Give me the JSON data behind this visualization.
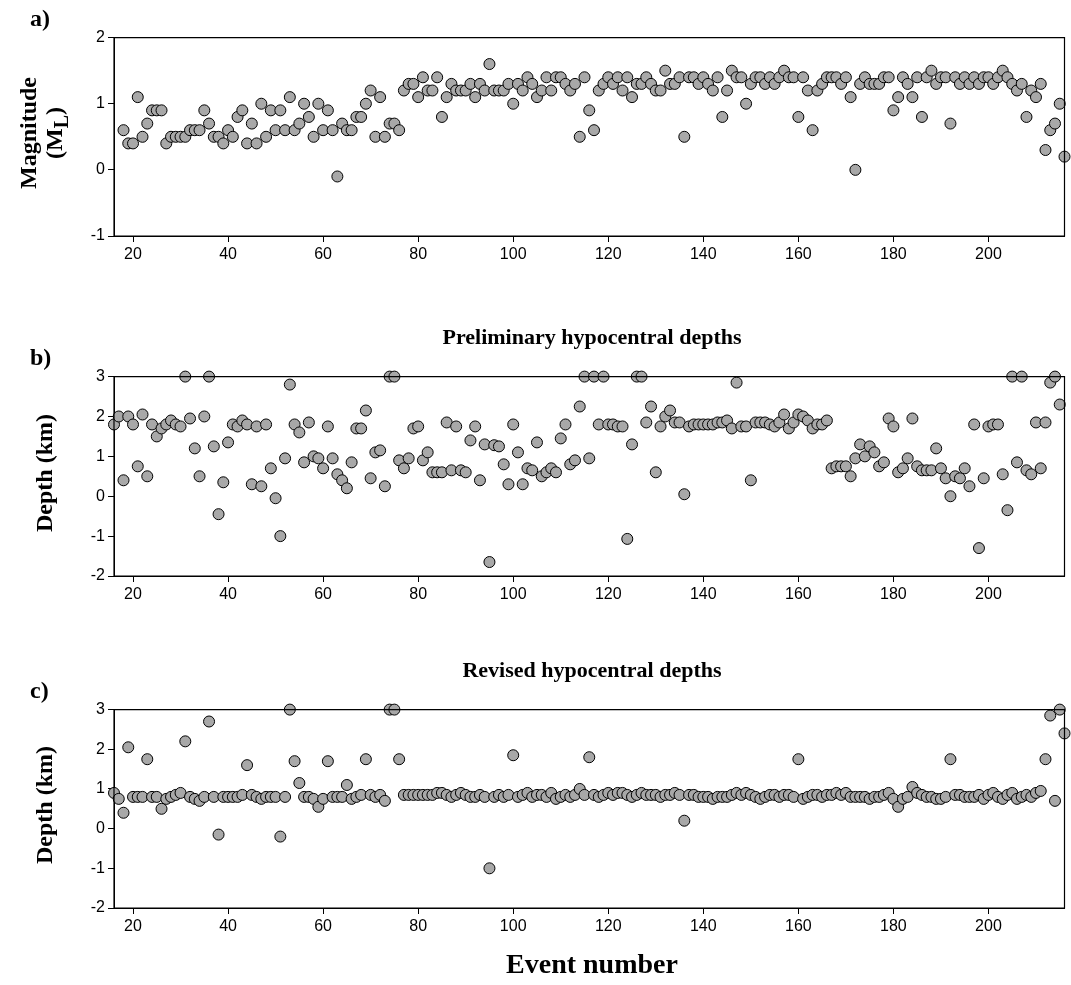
{
  "chart_data": [
    {
      "type": "scatter",
      "ylabel": "Magnitude (M$_{L}$)",
      "annotations": [
        "a)"
      ],
      "marker": "circle",
      "color": "#a8a8a8",
      "xlim": [
        16,
        216
      ],
      "xticks": [
        20,
        40,
        60,
        80,
        100,
        120,
        140,
        160,
        180,
        200
      ],
      "ylim": [
        -1,
        2
      ],
      "yticks": [
        -1,
        0,
        1,
        2
      ],
      "x": [
        18,
        19,
        20,
        21,
        22,
        23,
        24,
        25,
        26,
        27,
        28,
        29,
        30,
        31,
        32,
        33,
        34,
        35,
        36,
        37,
        38,
        39,
        40,
        41,
        42,
        43,
        44,
        45,
        46,
        47,
        48,
        49,
        50,
        51,
        52,
        53,
        54,
        55,
        56,
        57,
        58,
        59,
        60,
        61,
        62,
        63,
        64,
        65,
        66,
        67,
        68,
        69,
        70,
        71,
        72,
        73,
        74,
        75,
        76,
        77,
        78,
        79,
        80,
        81,
        82,
        83,
        84,
        85,
        86,
        87,
        88,
        89,
        90,
        91,
        92,
        93,
        94,
        95,
        96,
        97,
        98,
        99,
        100,
        101,
        102,
        103,
        104,
        105,
        106,
        107,
        108,
        109,
        110,
        111,
        112,
        113,
        114,
        115,
        116,
        117,
        118,
        119,
        120,
        121,
        122,
        123,
        124,
        125,
        126,
        127,
        128,
        129,
        130,
        131,
        132,
        133,
        134,
        135,
        136,
        137,
        138,
        139,
        140,
        141,
        142,
        143,
        144,
        145,
        146,
        147,
        148,
        149,
        150,
        151,
        152,
        153,
        154,
        155,
        156,
        157,
        158,
        159,
        160,
        161,
        162,
        163,
        164,
        165,
        166,
        167,
        168,
        169,
        170,
        171,
        172,
        173,
        174,
        175,
        176,
        177,
        178,
        179,
        180,
        181,
        182,
        183,
        184,
        185,
        186,
        187,
        188,
        189,
        190,
        191,
        192,
        193,
        194,
        195,
        196,
        197,
        198,
        199,
        200,
        201,
        202,
        203,
        204,
        205,
        206,
        207,
        208,
        209,
        210,
        211,
        212,
        213,
        214,
        215,
        216
      ],
      "values": [
        0.6,
        0.4,
        0.4,
        1.1,
        0.5,
        0.7,
        0.9,
        0.9,
        0.9,
        0.4,
        0.5,
        0.5,
        0.5,
        0.5,
        0.6,
        0.6,
        0.6,
        0.9,
        0.7,
        0.5,
        0.5,
        0.4,
        0.6,
        0.5,
        0.8,
        0.9,
        0.4,
        0.7,
        0.4,
        1.0,
        0.5,
        0.9,
        0.6,
        0.9,
        0.6,
        1.1,
        0.6,
        0.7,
        1.0,
        0.8,
        0.5,
        1.0,
        0.6,
        0.9,
        0.6,
        -0.1,
        0.7,
        0.6,
        0.6,
        0.8,
        0.8,
        1.0,
        1.2,
        0.5,
        1.1,
        0.5,
        0.7,
        0.7,
        0.6,
        1.2,
        1.3,
        1.3,
        1.1,
        1.4,
        1.2,
        1.2,
        1.4,
        0.8,
        1.1,
        1.3,
        1.2,
        1.2,
        1.2,
        1.3,
        1.1,
        1.3,
        1.2,
        1.6,
        1.2,
        1.2,
        1.2,
        1.3,
        1.0,
        1.3,
        1.2,
        1.4,
        1.3,
        1.1,
        1.2,
        1.4,
        1.2,
        1.4,
        1.4,
        1.3,
        1.2,
        1.3,
        0.5,
        1.4,
        0.9,
        0.6,
        1.2,
        1.3,
        1.4,
        1.3,
        1.4,
        1.2,
        1.4,
        1.1,
        1.3,
        1.3,
        1.4,
        1.3,
        1.2,
        1.2,
        1.5,
        1.3,
        1.3,
        1.4,
        0.5,
        1.4,
        1.4,
        1.3,
        1.4,
        1.3,
        1.2,
        1.4,
        0.8,
        1.2,
        1.5,
        1.4,
        1.4,
        1.0,
        1.3,
        1.4,
        1.4,
        1.3,
        1.4,
        1.3,
        1.4,
        1.5,
        1.4,
        1.4,
        0.8,
        1.4,
        1.2,
        0.6,
        1.2,
        1.3,
        1.4,
        1.4,
        1.4,
        1.3,
        1.4,
        1.1,
        0.0,
        1.3,
        1.4,
        1.3,
        1.3,
        1.3,
        1.4,
        1.4,
        0.9,
        1.1,
        1.4,
        1.3,
        1.1,
        1.4,
        0.8,
        1.4,
        1.5,
        1.3,
        1.4,
        1.4,
        0.7,
        1.4,
        1.3,
        1.4,
        1.3,
        1.4,
        1.3,
        1.4,
        1.4,
        1.3,
        1.4,
        1.5,
        1.4,
        1.3,
        1.2,
        1.3,
        0.8,
        1.2,
        1.1,
        1.3,
        0.3,
        0.6,
        0.7,
        1.0,
        0.2
      ]
    },
    {
      "type": "scatter",
      "title": "Preliminary hypocentral depths",
      "ylabel": "Depth (km)",
      "annotations": [
        "b)"
      ],
      "marker": "circle",
      "color": "#a8a8a8",
      "xlim": [
        16,
        216
      ],
      "xticks": [
        20,
        40,
        60,
        80,
        100,
        120,
        140,
        160,
        180,
        200
      ],
      "ylim": [
        -2,
        3
      ],
      "yticks": [
        -2,
        -1,
        0,
        1,
        2,
        3
      ],
      "x": [
        16,
        17,
        18,
        19,
        20,
        21,
        22,
        23,
        24,
        25,
        26,
        27,
        28,
        29,
        30,
        31,
        32,
        33,
        34,
        35,
        36,
        37,
        38,
        39,
        40,
        41,
        42,
        43,
        44,
        45,
        46,
        47,
        48,
        49,
        50,
        51,
        52,
        53,
        54,
        55,
        56,
        57,
        58,
        59,
        60,
        61,
        62,
        63,
        64,
        65,
        66,
        67,
        68,
        69,
        70,
        71,
        72,
        73,
        74,
        75,
        76,
        77,
        78,
        79,
        80,
        81,
        82,
        83,
        84,
        85,
        86,
        87,
        88,
        89,
        90,
        91,
        92,
        93,
        94,
        95,
        96,
        97,
        98,
        99,
        100,
        101,
        102,
        103,
        104,
        105,
        106,
        107,
        108,
        109,
        110,
        111,
        112,
        113,
        114,
        115,
        116,
        117,
        118,
        119,
        120,
        121,
        122,
        123,
        124,
        125,
        126,
        127,
        128,
        129,
        130,
        131,
        132,
        133,
        134,
        135,
        136,
        137,
        138,
        139,
        140,
        141,
        142,
        143,
        144,
        145,
        146,
        147,
        148,
        149,
        150,
        151,
        152,
        153,
        154,
        155,
        156,
        157,
        158,
        159,
        160,
        161,
        162,
        163,
        164,
        165,
        166,
        167,
        168,
        169,
        170,
        171,
        172,
        173,
        174,
        175,
        176,
        177,
        178,
        179,
        180,
        181,
        182,
        183,
        184,
        185,
        186,
        187,
        188,
        189,
        190,
        191,
        192,
        193,
        194,
        195,
        196,
        197,
        198,
        199,
        200,
        201,
        202,
        203,
        204,
        205,
        206,
        207,
        208,
        209,
        210,
        211,
        212,
        213,
        214,
        215
      ],
      "values": [
        1.8,
        2.0,
        0.4,
        2.0,
        1.8,
        0.75,
        2.05,
        0.5,
        1.8,
        1.5,
        1.7,
        1.8,
        1.9,
        1.8,
        1.75,
        3.0,
        1.95,
        1.2,
        0.5,
        2.0,
        3.0,
        1.25,
        -0.45,
        0.35,
        1.35,
        1.8,
        1.75,
        1.9,
        1.8,
        0.3,
        1.75,
        0.25,
        1.8,
        0.7,
        -0.05,
        -1.0,
        0.95,
        2.8,
        1.8,
        1.6,
        0.85,
        1.85,
        1.0,
        0.95,
        0.7,
        1.75,
        0.95,
        0.55,
        0.4,
        0.2,
        0.85,
        1.7,
        1.7,
        2.15,
        0.45,
        1.1,
        1.15,
        0.25,
        3.0,
        3.0,
        0.9,
        0.7,
        0.95,
        1.7,
        1.75,
        0.9,
        1.1,
        0.6,
        0.6,
        0.6,
        1.85,
        0.65,
        1.75,
        0.65,
        0.6,
        1.4,
        1.75,
        0.4,
        1.3,
        -1.65,
        1.28,
        1.25,
        0.8,
        0.3,
        1.8,
        1.1,
        0.3,
        0.7,
        0.65,
        1.35,
        0.5,
        0.6,
        0.7,
        0.6,
        1.45,
        1.8,
        0.8,
        0.9,
        2.25,
        3.0,
        0.95,
        3.0,
        1.8,
        3.0,
        1.8,
        1.8,
        1.75,
        1.75,
        -1.07,
        1.3,
        3.0,
        3.0,
        1.85,
        2.25,
        0.6,
        1.75,
        2.0,
        2.15,
        1.85,
        1.85,
        0.05,
        1.75,
        1.8,
        1.8,
        1.8,
        1.8,
        1.8,
        1.85,
        1.85,
        1.9,
        1.7,
        2.85,
        1.75,
        1.75,
        0.4,
        1.85,
        1.85,
        1.85,
        1.8,
        1.75,
        1.85,
        2.05,
        1.7,
        1.85,
        2.05,
        2.0,
        1.9,
        1.7,
        1.8,
        1.8,
        1.9,
        0.7,
        0.75,
        0.75,
        0.75,
        0.5,
        0.95,
        1.3,
        1.0,
        1.25,
        1.1,
        0.75,
        0.85,
        1.95,
        1.75,
        0.6,
        0.7,
        0.95,
        1.95,
        0.75,
        0.65,
        0.65,
        0.65,
        1.2,
        0.7,
        0.45,
        0.0,
        0.5,
        0.45,
        0.7,
        0.25,
        1.8,
        -1.3,
        0.45,
        1.75,
        1.8,
        1.8,
        0.55,
        -0.35,
        3.0,
        0.85,
        3.0,
        0.65,
        0.55,
        1.85,
        0.7,
        1.85,
        2.85,
        3.0,
        2.3
      ]
    },
    {
      "type": "scatter",
      "title": "Revised hypocentral depths",
      "xlabel": "Event number",
      "ylabel": "Depth (km)",
      "annotations": [
        "c)"
      ],
      "marker": "circle",
      "color": "#a8a8a8",
      "xlim": [
        16,
        216
      ],
      "xticks": [
        20,
        40,
        60,
        80,
        100,
        120,
        140,
        160,
        180,
        200
      ],
      "ylim": [
        -2,
        3
      ],
      "yticks": [
        -2,
        -1,
        0,
        1,
        2,
        3
      ],
      "x": [
        16,
        17,
        18,
        19,
        20,
        21,
        22,
        23,
        24,
        25,
        26,
        27,
        28,
        29,
        30,
        31,
        32,
        33,
        34,
        35,
        36,
        37,
        38,
        39,
        40,
        41,
        42,
        43,
        44,
        45,
        46,
        47,
        48,
        49,
        50,
        51,
        52,
        53,
        54,
        55,
        56,
        57,
        58,
        59,
        60,
        61,
        62,
        63,
        64,
        65,
        66,
        67,
        68,
        69,
        70,
        71,
        72,
        73,
        74,
        75,
        76,
        77,
        78,
        79,
        80,
        81,
        82,
        83,
        84,
        85,
        86,
        87,
        88,
        89,
        90,
        91,
        92,
        93,
        94,
        95,
        96,
        97,
        98,
        99,
        100,
        101,
        102,
        103,
        104,
        105,
        106,
        107,
        108,
        109,
        110,
        111,
        112,
        113,
        114,
        115,
        116,
        117,
        118,
        119,
        120,
        121,
        122,
        123,
        124,
        125,
        126,
        127,
        128,
        129,
        130,
        131,
        132,
        133,
        134,
        135,
        136,
        137,
        138,
        139,
        140,
        141,
        142,
        143,
        144,
        145,
        146,
        147,
        148,
        149,
        150,
        151,
        152,
        153,
        154,
        155,
        156,
        157,
        158,
        159,
        160,
        161,
        162,
        163,
        164,
        165,
        166,
        167,
        168,
        169,
        170,
        171,
        172,
        173,
        174,
        175,
        176,
        177,
        178,
        179,
        180,
        181,
        182,
        183,
        184,
        185,
        186,
        187,
        188,
        189,
        190,
        191,
        192,
        193,
        194,
        195,
        196,
        197,
        198,
        199,
        200,
        201,
        202,
        203,
        204,
        205,
        206,
        207,
        208,
        209,
        210,
        211,
        212,
        213,
        214,
        215,
        216
      ],
      "values": [
        0.9,
        0.75,
        0.4,
        2.05,
        0.8,
        0.8,
        0.8,
        1.75,
        0.8,
        0.8,
        0.5,
        0.75,
        0.8,
        0.85,
        0.9,
        2.2,
        0.8,
        0.75,
        0.7,
        0.8,
        2.7,
        0.8,
        -0.15,
        0.8,
        0.8,
        0.8,
        0.8,
        0.85,
        1.6,
        0.85,
        0.8,
        0.75,
        0.8,
        0.8,
        0.8,
        -0.2,
        0.8,
        3.0,
        1.7,
        1.15,
        0.8,
        0.8,
        0.75,
        0.55,
        0.75,
        1.7,
        0.8,
        0.8,
        0.8,
        1.1,
        0.75,
        0.8,
        0.85,
        1.75,
        0.85,
        0.8,
        0.85,
        0.7,
        3.0,
        3.0,
        1.75,
        0.85,
        0.85,
        0.85,
        0.85,
        0.85,
        0.85,
        0.85,
        0.9,
        0.9,
        0.85,
        0.8,
        0.85,
        0.9,
        0.85,
        0.8,
        0.8,
        0.85,
        0.8,
        -1.0,
        0.8,
        0.85,
        0.8,
        0.85,
        1.85,
        0.8,
        0.85,
        0.9,
        0.8,
        0.85,
        0.85,
        0.8,
        0.9,
        0.75,
        0.8,
        0.85,
        0.8,
        0.85,
        1.0,
        0.85,
        1.8,
        0.85,
        0.8,
        0.85,
        0.9,
        0.85,
        0.9,
        0.9,
        0.85,
        0.8,
        0.85,
        0.9,
        0.85,
        0.85,
        0.85,
        0.8,
        0.85,
        0.85,
        0.9,
        0.85,
        0.2,
        0.85,
        0.85,
        0.8,
        0.8,
        0.8,
        0.75,
        0.8,
        0.8,
        0.8,
        0.85,
        0.9,
        0.85,
        0.9,
        0.85,
        0.8,
        0.75,
        0.8,
        0.85,
        0.85,
        0.8,
        0.85,
        0.85,
        0.8,
        1.75,
        0.75,
        0.8,
        0.85,
        0.85,
        0.8,
        0.85,
        0.85,
        0.9,
        0.85,
        0.9,
        0.8,
        0.8,
        0.8,
        0.8,
        0.75,
        0.8,
        0.8,
        0.85,
        0.9,
        0.75,
        0.55,
        0.75,
        0.8,
        1.05,
        0.9,
        0.85,
        0.8,
        0.8,
        0.75,
        0.75,
        0.8,
        1.75,
        0.85,
        0.85,
        0.8,
        0.8,
        0.8,
        0.85,
        0.75,
        0.85,
        0.9,
        0.8,
        0.75,
        0.85,
        0.9,
        0.75,
        0.8,
        0.85,
        0.8,
        0.9,
        0.95,
        1.75,
        2.85,
        0.7,
        3.0,
        2.4
      ]
    }
  ]
}
